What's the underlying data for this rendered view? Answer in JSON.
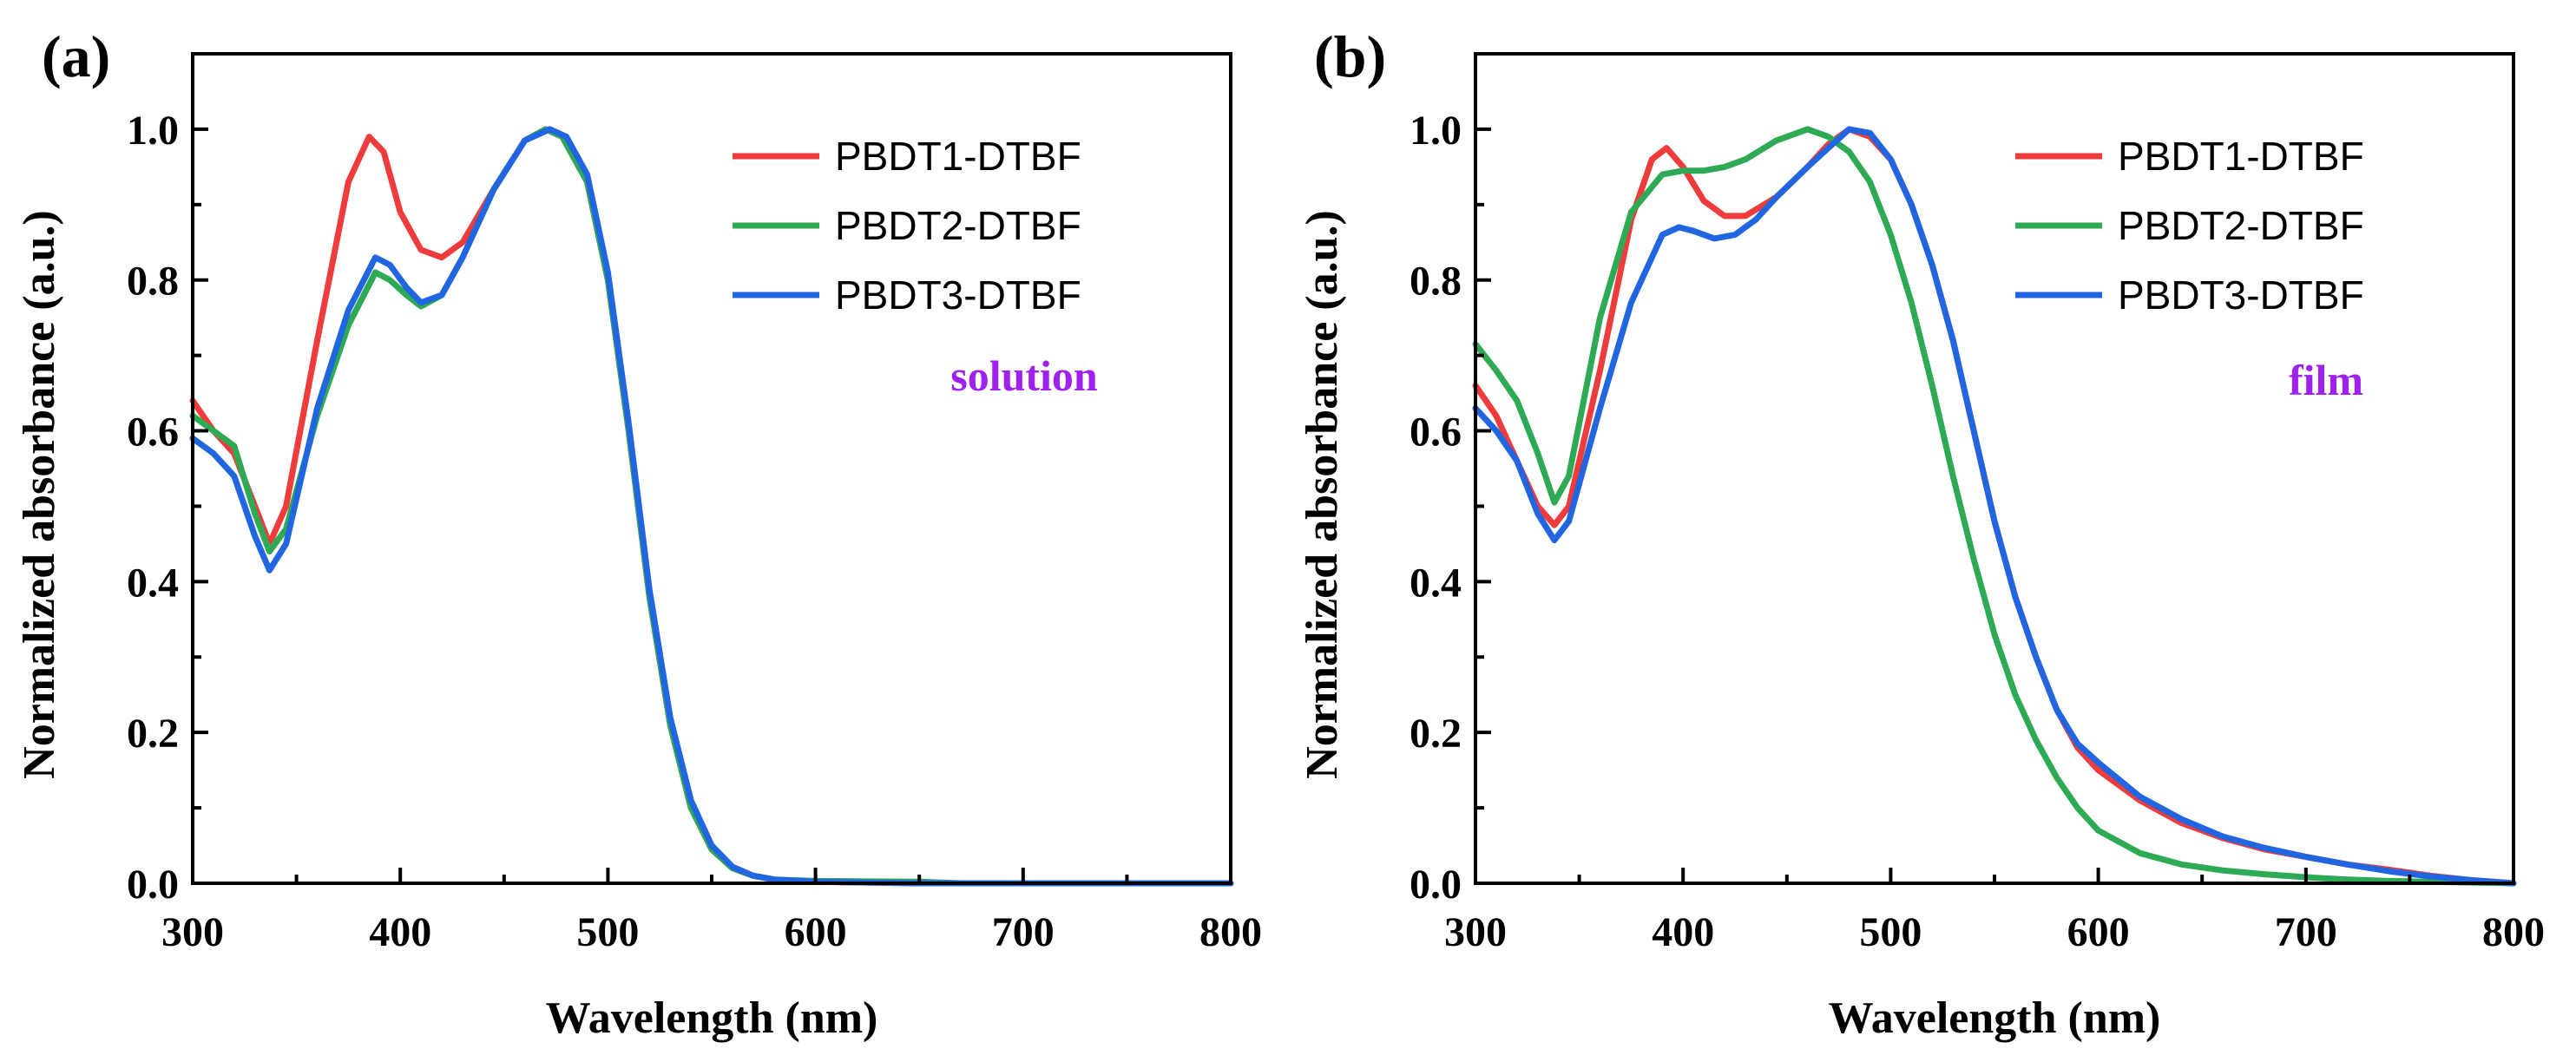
{
  "colors": {
    "PBDT1-DTBF": "#ee3b3b",
    "PBDT2-DTBF": "#2eaa55",
    "PBDT3-DTBF": "#2166e0",
    "annotation": "#a020f0"
  },
  "chart_data": [
    {
      "panel_label": "(a)",
      "type": "line",
      "xlabel": "Wavelength (nm)",
      "ylabel": "Normalized absorbance (a.u.)",
      "xlim": [
        300,
        800
      ],
      "ylim": [
        0,
        1.1
      ],
      "xticks": [
        300,
        400,
        500,
        600,
        700,
        800
      ],
      "xtick_labels": [
        "300",
        "400",
        "500",
        "600",
        "700",
        "800"
      ],
      "yticks": [
        0,
        0.2,
        0.4,
        0.6,
        0.8,
        1.0
      ],
      "ytick_labels": [
        "0.0",
        "0.2",
        "0.4",
        "0.6",
        "0.8",
        "1.0"
      ],
      "legend_position": "top-right",
      "annotation": "solution",
      "series": [
        {
          "name": "PBDT1-DTBF",
          "x": [
            300,
            310,
            320,
            330,
            337,
            345,
            360,
            375,
            385,
            392,
            400,
            410,
            420,
            430,
            445,
            460,
            470,
            478,
            490,
            500,
            510,
            520,
            530,
            540,
            550,
            560,
            570,
            580,
            600,
            650,
            700,
            800
          ],
          "y": [
            0.64,
            0.6,
            0.57,
            0.5,
            0.45,
            0.5,
            0.72,
            0.93,
            0.99,
            0.97,
            0.89,
            0.84,
            0.83,
            0.85,
            0.92,
            0.985,
            1.0,
            0.99,
            0.93,
            0.8,
            0.6,
            0.38,
            0.21,
            0.1,
            0.045,
            0.02,
            0.01,
            0.005,
            0.002,
            0.0,
            0.0,
            0.0
          ]
        },
        {
          "name": "PBDT2-DTBF",
          "x": [
            300,
            310,
            320,
            330,
            337,
            345,
            360,
            375,
            388,
            395,
            403,
            410,
            420,
            430,
            445,
            460,
            470,
            478,
            490,
            500,
            510,
            520,
            530,
            540,
            550,
            560,
            570,
            580,
            600,
            650,
            670,
            700,
            800
          ],
          "y": [
            0.62,
            0.6,
            0.58,
            0.49,
            0.44,
            0.47,
            0.62,
            0.74,
            0.81,
            0.8,
            0.78,
            0.765,
            0.78,
            0.83,
            0.92,
            0.985,
            1.0,
            0.99,
            0.93,
            0.8,
            0.6,
            0.38,
            0.21,
            0.1,
            0.045,
            0.02,
            0.01,
            0.005,
            0.003,
            0.002,
            0.0,
            0.0,
            0.0
          ]
        },
        {
          "name": "PBDT3-DTBF",
          "x": [
            300,
            310,
            320,
            330,
            337,
            345,
            360,
            375,
            388,
            395,
            403,
            410,
            420,
            430,
            445,
            460,
            472,
            480,
            490,
            500,
            510,
            520,
            530,
            540,
            550,
            560,
            570,
            580,
            600,
            650,
            700,
            800
          ],
          "y": [
            0.59,
            0.57,
            0.54,
            0.46,
            0.415,
            0.45,
            0.63,
            0.76,
            0.83,
            0.82,
            0.79,
            0.77,
            0.78,
            0.83,
            0.92,
            0.985,
            1.0,
            0.99,
            0.94,
            0.81,
            0.61,
            0.39,
            0.22,
            0.11,
            0.05,
            0.022,
            0.01,
            0.005,
            0.002,
            0.0,
            0.0,
            0.0
          ]
        }
      ]
    },
    {
      "panel_label": "(b)",
      "type": "line",
      "xlabel": "Wavelength (nm)",
      "ylabel": "Normalized absorbance (a.u.)",
      "xlim": [
        300,
        800
      ],
      "ylim": [
        0,
        1.1
      ],
      "xticks": [
        300,
        400,
        500,
        600,
        700,
        800
      ],
      "xtick_labels": [
        "300",
        "400",
        "500",
        "600",
        "700",
        "800"
      ],
      "yticks": [
        0,
        0.2,
        0.4,
        0.6,
        0.8,
        1.0
      ],
      "ytick_labels": [
        "0.0",
        "0.2",
        "0.4",
        "0.6",
        "0.8",
        "1.0"
      ],
      "legend_position": "top-right",
      "annotation": "film",
      "series": [
        {
          "name": "PBDT1-DTBF",
          "x": [
            300,
            310,
            320,
            330,
            338,
            345,
            360,
            375,
            385,
            392,
            400,
            410,
            420,
            430,
            445,
            460,
            470,
            480,
            490,
            500,
            510,
            520,
            530,
            540,
            550,
            560,
            570,
            580,
            590,
            600,
            620,
            640,
            660,
            680,
            700,
            720,
            740,
            760,
            780,
            800
          ],
          "y": [
            0.66,
            0.62,
            0.56,
            0.5,
            0.475,
            0.5,
            0.68,
            0.88,
            0.96,
            0.975,
            0.95,
            0.905,
            0.885,
            0.885,
            0.91,
            0.95,
            0.98,
            1.0,
            0.99,
            0.96,
            0.9,
            0.82,
            0.72,
            0.6,
            0.48,
            0.38,
            0.3,
            0.23,
            0.18,
            0.15,
            0.11,
            0.08,
            0.06,
            0.045,
            0.035,
            0.025,
            0.018,
            0.01,
            0.004,
            0.0
          ]
        },
        {
          "name": "PBDT2-DTBF",
          "x": [
            300,
            310,
            320,
            330,
            338,
            345,
            360,
            375,
            390,
            400,
            410,
            420,
            430,
            445,
            460,
            470,
            480,
            490,
            500,
            510,
            520,
            530,
            540,
            550,
            560,
            570,
            580,
            590,
            600,
            620,
            640,
            660,
            680,
            700,
            720,
            740,
            760,
            780,
            800
          ],
          "y": [
            0.715,
            0.68,
            0.64,
            0.57,
            0.505,
            0.54,
            0.75,
            0.89,
            0.94,
            0.945,
            0.945,
            0.95,
            0.96,
            0.985,
            1.0,
            0.99,
            0.97,
            0.93,
            0.86,
            0.77,
            0.66,
            0.54,
            0.43,
            0.33,
            0.25,
            0.19,
            0.14,
            0.1,
            0.07,
            0.04,
            0.025,
            0.017,
            0.012,
            0.008,
            0.005,
            0.003,
            0.002,
            0.001,
            0.0
          ]
        },
        {
          "name": "PBDT3-DTBF",
          "x": [
            300,
            310,
            320,
            330,
            338,
            345,
            360,
            375,
            390,
            398,
            405,
            415,
            425,
            435,
            445,
            460,
            470,
            480,
            490,
            500,
            510,
            520,
            530,
            540,
            550,
            560,
            570,
            580,
            590,
            600,
            620,
            640,
            660,
            680,
            700,
            720,
            740,
            760,
            780,
            800
          ],
          "y": [
            0.63,
            0.6,
            0.56,
            0.49,
            0.455,
            0.48,
            0.63,
            0.77,
            0.86,
            0.87,
            0.865,
            0.855,
            0.86,
            0.88,
            0.91,
            0.95,
            0.975,
            1.0,
            0.995,
            0.96,
            0.9,
            0.82,
            0.72,
            0.6,
            0.48,
            0.38,
            0.3,
            0.23,
            0.185,
            0.16,
            0.115,
            0.085,
            0.062,
            0.047,
            0.035,
            0.025,
            0.016,
            0.009,
            0.004,
            0.0
          ]
        }
      ]
    }
  ]
}
